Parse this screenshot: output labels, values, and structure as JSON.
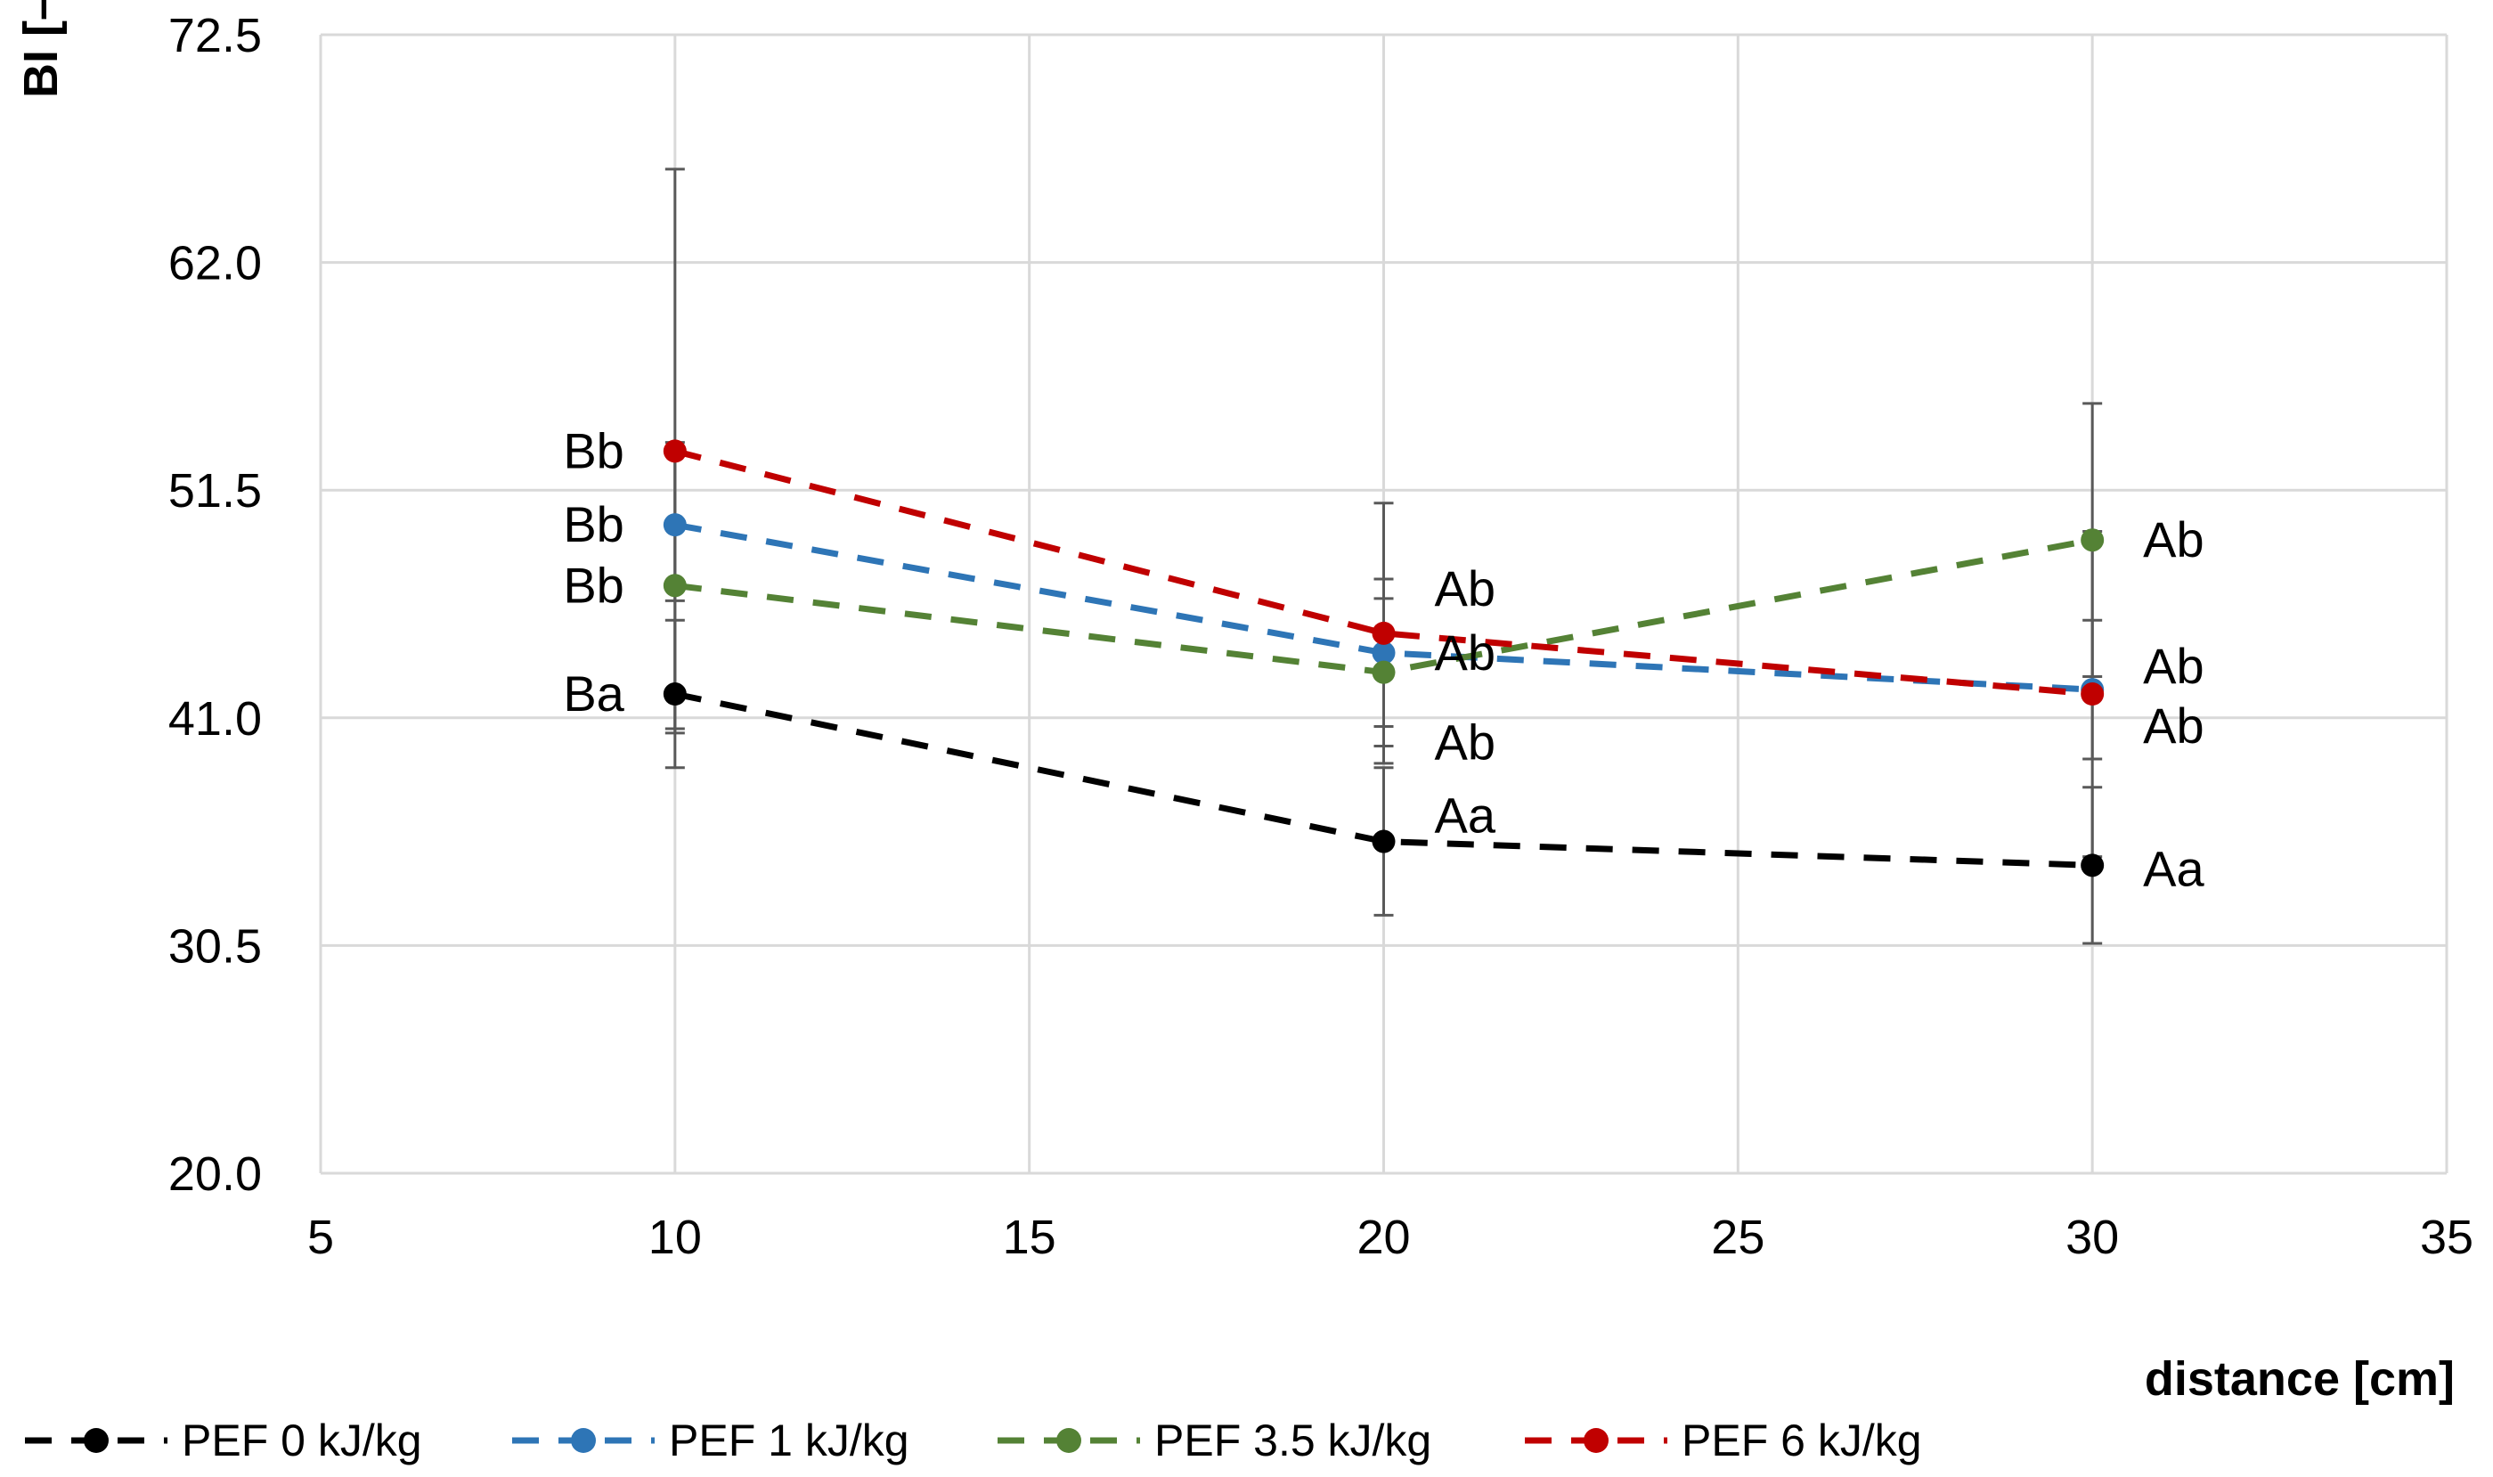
{
  "chart_data": {
    "type": "line",
    "title": "",
    "xlabel": "distance [cm]",
    "ylabel": "BI [–]",
    "xlim": [
      5,
      35
    ],
    "ylim": [
      20.0,
      72.5
    ],
    "xticks": [
      "5",
      "10",
      "15",
      "20",
      "25",
      "30",
      "35"
    ],
    "yticks": [
      "20.0",
      "30.5",
      "41.0",
      "51.5",
      "62.0",
      "72.5"
    ],
    "grid": true,
    "legend_position": "bottom",
    "x": [
      10,
      20,
      30
    ],
    "series": [
      {
        "name": "PEF 0 kJ/kg",
        "color": "#000000",
        "values": [
          42.1,
          35.3,
          34.2
        ],
        "errors": [
          3.4,
          3.4,
          3.6
        ],
        "labels": [
          "Ba",
          "Aa",
          "Aa"
        ]
      },
      {
        "name": "PEF 1 kJ/kg",
        "color": "#2e75b6",
        "values": [
          49.9,
          44.0,
          42.3
        ],
        "errors": [
          3.5,
          3.4,
          3.2
        ],
        "labels": [
          "Bb",
          "Ab",
          "Ab"
        ]
      },
      {
        "name": "PEF 3.5 kJ/kg",
        "color": "#548235",
        "values": [
          47.1,
          43.1,
          49.2
        ],
        "errors": [
          6.6,
          3.4,
          6.3
        ],
        "labels": [
          "Bb",
          "Ab",
          "Ab"
        ]
      },
      {
        "name": "PEF 6 kJ/kg",
        "color": "#c00000",
        "values": [
          53.3,
          44.9,
          42.1
        ],
        "errors": [
          13.0,
          6.0,
          7.5
        ],
        "labels": [
          "Bb",
          "Ab",
          "Ab"
        ]
      }
    ]
  }
}
